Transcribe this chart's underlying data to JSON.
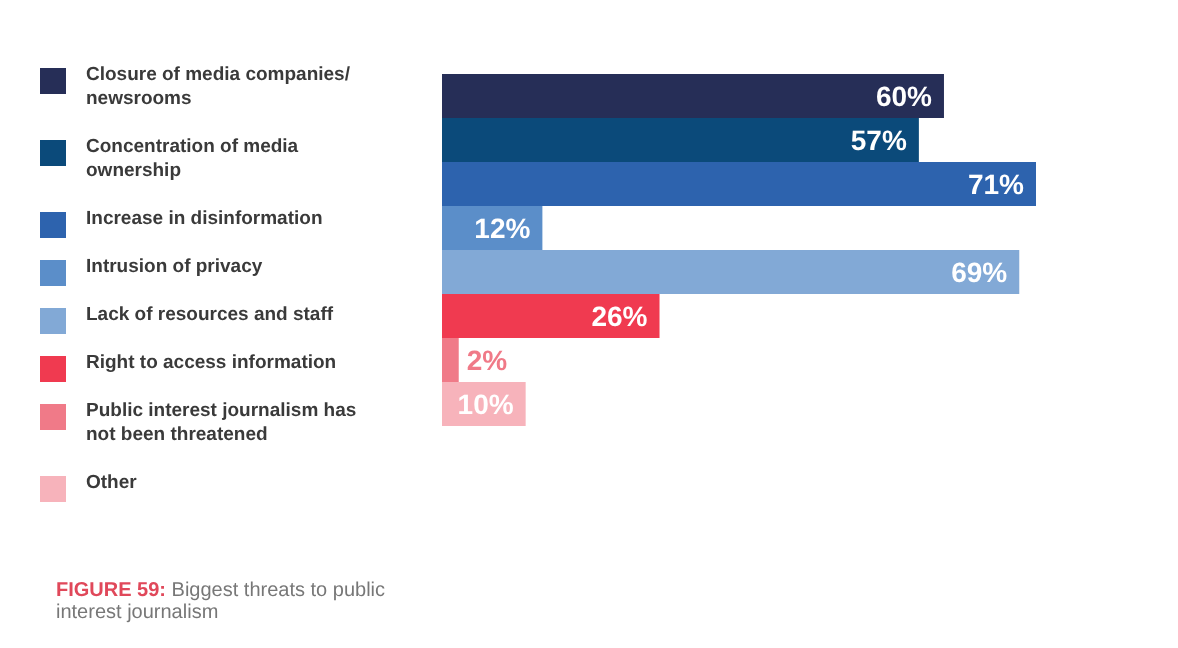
{
  "chart_data": {
    "type": "bar",
    "orientation": "horizontal",
    "annotations": [
      "FIGURE 59: Biggest threats to public interest journalism"
    ],
    "categories": [
      null
    ],
    "series": [
      {
        "name": "Closure of media companies/ newsrooms",
        "color": "#262e57",
        "values": [
          60
        ],
        "value_labels": [
          "60%"
        ]
      },
      {
        "name": "Concentration of media ownership",
        "color": "#0b4a7a",
        "values": [
          57
        ],
        "value_labels": [
          "57%"
        ]
      },
      {
        "name": "Increase in disinformation",
        "color": "#2d63ae",
        "values": [
          71
        ],
        "value_labels": [
          "71%"
        ]
      },
      {
        "name": "Intrusion of privacy",
        "color": "#5b8ec9",
        "values": [
          12
        ],
        "value_labels": [
          "12%"
        ]
      },
      {
        "name": "Lack of resources and staff",
        "color": "#82a9d6",
        "values": [
          69
        ],
        "value_labels": [
          "69%"
        ]
      },
      {
        "name": "Right to access information",
        "color": "#f03a50",
        "values": [
          26
        ],
        "value_labels": [
          "26%"
        ]
      },
      {
        "name": "Public interest journalism has not been threatened",
        "color": "#f07a88",
        "values": [
          2
        ],
        "value_labels": [
          "2%"
        ]
      },
      {
        "name": "Other",
        "color": "#f7b3bb",
        "values": [
          10
        ],
        "value_labels": [
          "10%"
        ]
      }
    ],
    "legend": "left"
  }
}
